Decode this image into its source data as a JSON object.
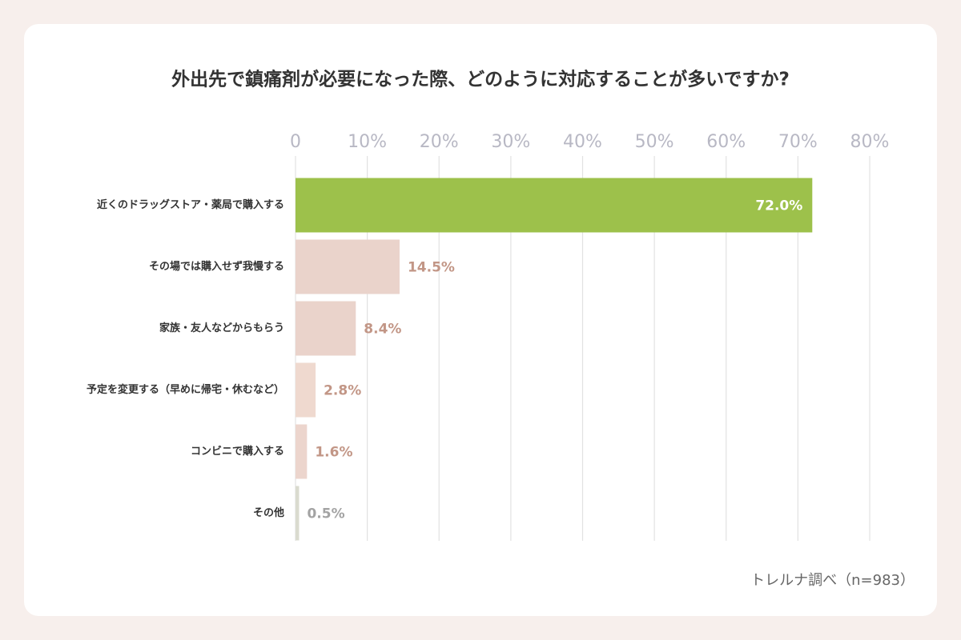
{
  "chart_data": {
    "type": "bar",
    "orientation": "horizontal",
    "title": "外出先で鎮痛剤が必要になった際、どのように対応することが多いですか?",
    "categories": [
      "近くのドラッグストア・薬局で購入する",
      "その場では購入せず我慢する",
      "家族・友人などからもらう",
      "予定を変更する（早めに帰宅・休むなど）",
      "コンビニで購入する",
      "その他"
    ],
    "values": [
      72.0,
      14.5,
      8.4,
      2.8,
      1.6,
      0.5
    ],
    "value_labels": [
      "72.0%",
      "14.5%",
      "8.4%",
      "2.8%",
      "1.6%",
      "0.5%"
    ],
    "colors": [
      "#9dc14b",
      "#ead3cb",
      "#ead3cb",
      "#efd9cf",
      "#ecd5cd",
      "#dadbcf"
    ],
    "value_label_colors": [
      "#ffffff",
      "#c29686",
      "#c29686",
      "#c29686",
      "#c29686",
      "#a3a3a3"
    ],
    "xlim": [
      0,
      80
    ],
    "xticks": [
      0,
      {
        "value": 10,
        "label": "10%"
      },
      {
        "value": 20,
        "label": "20%"
      },
      {
        "value": 30,
        "label": "30%"
      },
      {
        "value": 40,
        "label": "40%"
      },
      {
        "value": 50,
        "label": "50%"
      },
      {
        "value": 60,
        "label": "60%"
      },
      {
        "value": 70,
        "label": "70%"
      },
      {
        "value": 80,
        "label": "80%"
      }
    ],
    "grid": true,
    "source": "トレルナ調べ（n=983）"
  }
}
